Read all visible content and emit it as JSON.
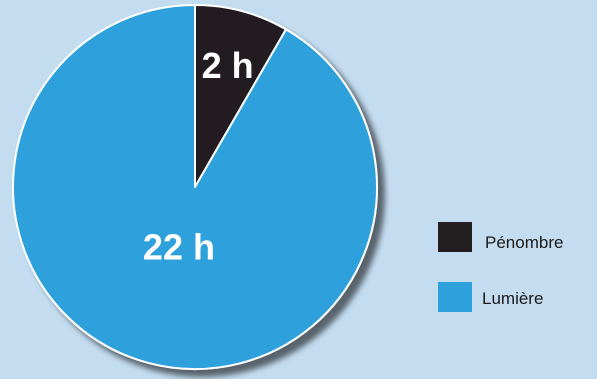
{
  "chart_data": {
    "type": "pie",
    "categories": [
      "Pénombre",
      "Lumière"
    ],
    "values": [
      2,
      22
    ],
    "data_labels": [
      "2 h",
      "22 h"
    ],
    "colors": [
      "#231f20",
      "#2ea1dc"
    ],
    "slice_outline": "#ffffff",
    "background": "#c3dcf0",
    "legend": {
      "position": "right",
      "items": [
        {
          "label": "Pénombre",
          "color": "#231f20"
        },
        {
          "label": "Lumière",
          "color": "#2ea1dc"
        }
      ]
    }
  }
}
